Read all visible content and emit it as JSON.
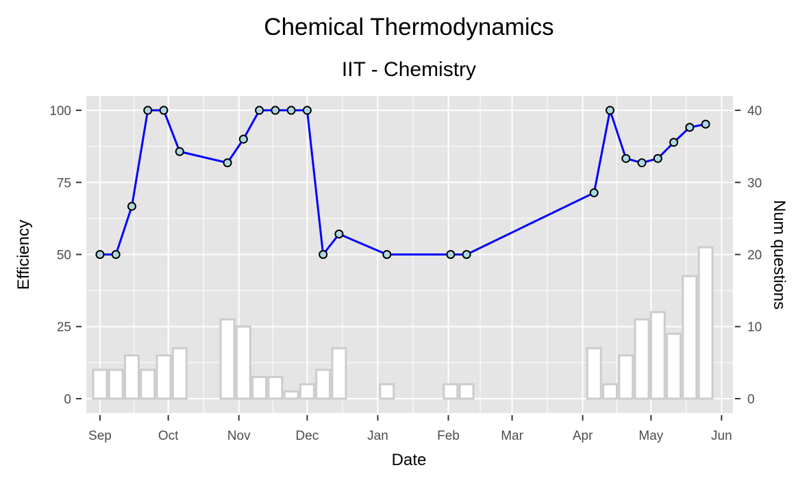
{
  "chart_data": {
    "type": "bar+line",
    "title": "Chemical Thermodynamics",
    "subtitle": "IIT - Chemistry",
    "xlabel": "Date",
    "ylabel": "Efficiency",
    "y2label": "Num questions",
    "xlim": [
      "2020-08-26",
      "2021-06-06"
    ],
    "ylim": [
      -5,
      105
    ],
    "y2lim": [
      -2,
      42
    ],
    "x_ticks": [
      {
        "date": "2020-09-01",
        "label": "Sep"
      },
      {
        "date": "2020-10-01",
        "label": "Oct"
      },
      {
        "date": "2020-11-01",
        "label": "Nov"
      },
      {
        "date": "2020-12-01",
        "label": "Dec"
      },
      {
        "date": "2021-01-01",
        "label": "Jan"
      },
      {
        "date": "2021-02-01",
        "label": "Feb"
      },
      {
        "date": "2021-03-01",
        "label": "Mar"
      },
      {
        "date": "2021-04-01",
        "label": "Apr"
      },
      {
        "date": "2021-05-01",
        "label": "May"
      },
      {
        "date": "2021-06-01",
        "label": "Jun"
      }
    ],
    "y_ticks": [
      0,
      25,
      50,
      75,
      100
    ],
    "y2_ticks": [
      0,
      10,
      20,
      30,
      40
    ],
    "grid": true,
    "line_color": "#0000ff",
    "point_fill": "#add8e6",
    "bar_stroke": "#cccccc",
    "panel_bg": "#e5e5e5",
    "bar_width_days": 6,
    "points": [
      {
        "date": "2020-09-01",
        "efficiency": 50,
        "questions": 4
      },
      {
        "date": "2020-09-08",
        "efficiency": 50,
        "questions": 4
      },
      {
        "date": "2020-09-15",
        "efficiency": 66.7,
        "questions": 6
      },
      {
        "date": "2020-09-22",
        "efficiency": 100,
        "questions": 4
      },
      {
        "date": "2020-09-29",
        "efficiency": 100,
        "questions": 6
      },
      {
        "date": "2020-10-06",
        "efficiency": 85.7,
        "questions": 7
      },
      {
        "date": "2020-10-27",
        "efficiency": 81.8,
        "questions": 11
      },
      {
        "date": "2020-11-03",
        "efficiency": 90,
        "questions": 10
      },
      {
        "date": "2020-11-10",
        "efficiency": 100,
        "questions": 3
      },
      {
        "date": "2020-11-17",
        "efficiency": 100,
        "questions": 3
      },
      {
        "date": "2020-11-24",
        "efficiency": 100,
        "questions": 1
      },
      {
        "date": "2020-12-01",
        "efficiency": 100,
        "questions": 2
      },
      {
        "date": "2020-12-08",
        "efficiency": 50,
        "questions": 4
      },
      {
        "date": "2020-12-15",
        "efficiency": 57.1,
        "questions": 7
      },
      {
        "date": "2021-01-05",
        "efficiency": 50,
        "questions": 2
      },
      {
        "date": "2021-02-02",
        "efficiency": 50,
        "questions": 2
      },
      {
        "date": "2021-02-09",
        "efficiency": 50,
        "questions": 2
      },
      {
        "date": "2021-04-06",
        "efficiency": 71.4,
        "questions": 7
      },
      {
        "date": "2021-04-13",
        "efficiency": 100,
        "questions": 2
      },
      {
        "date": "2021-04-20",
        "efficiency": 83.3,
        "questions": 6
      },
      {
        "date": "2021-04-27",
        "efficiency": 81.8,
        "questions": 11
      },
      {
        "date": "2021-05-04",
        "efficiency": 83.3,
        "questions": 12
      },
      {
        "date": "2021-05-11",
        "efficiency": 88.9,
        "questions": 9
      },
      {
        "date": "2021-05-18",
        "efficiency": 94.1,
        "questions": 17
      },
      {
        "date": "2021-05-25",
        "efficiency": 95.2,
        "questions": 21
      }
    ]
  }
}
